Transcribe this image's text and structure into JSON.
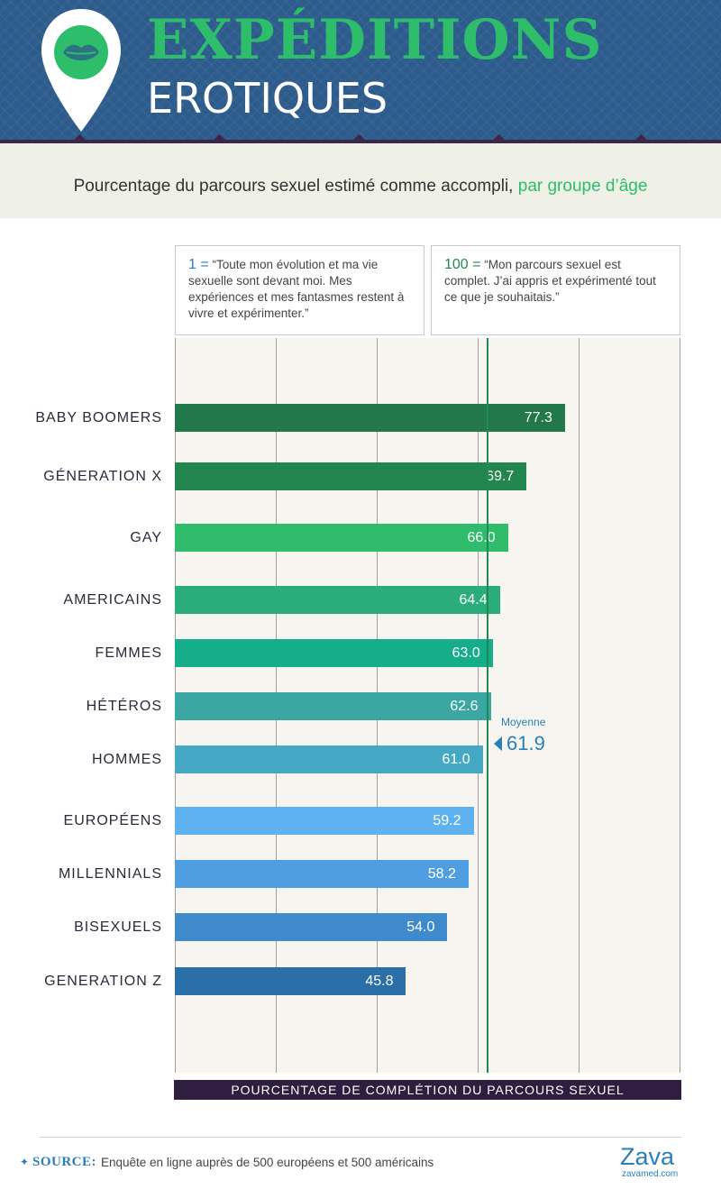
{
  "header": {
    "title_main": "EXPÉDITIONS",
    "title_sub": "EROTIQUES"
  },
  "subtitle": {
    "text": "Pourcentage du parcours sexuel estimé comme accompli, ",
    "accent": "par groupe d’âge"
  },
  "legend": {
    "left_num": "1 =",
    "left_text": "“Toute mon évolution et ma vie sexuelle sont devant moi. Mes expériences et mes fantasmes restent à vivre et expérimenter.”",
    "right_num": "100 =",
    "right_text": "“Mon parcours sexuel est complet. J’ai appris et expérimenté tout ce que je souhaitais.”"
  },
  "average": {
    "label": "Moyenne",
    "value_text": "61.9"
  },
  "footer": {
    "source_label": "SOURCE:",
    "source_text": "Enquête en ligne auprès de 500 européens et 500 américains",
    "logo_word": "Zava",
    "logo_url": "zavamed.com"
  },
  "colors": {
    "header_bg": "#2c5b8c",
    "title_green": "#2ebd6b",
    "avg_line": "#1f8a52",
    "avg_text": "#2a7fb8",
    "axis_band": "#2f1e40"
  },
  "chart_data": {
    "type": "bar",
    "orientation": "horizontal",
    "title": "Pourcentage du parcours sexuel estimé comme accompli, par groupe d’âge",
    "xlabel": "POURCENTAGE DE COMPLÉTION DU PARCOURS SEXUEL",
    "ylabel": "",
    "xlim": [
      0,
      100
    ],
    "grid": true,
    "average": 61.9,
    "categories": [
      "BABY BOOMERS",
      "GÉNERATION X",
      "GAY",
      "AMERICAINS",
      "FEMMES",
      "HÉTÉROS",
      "HOMMES",
      "EUROPÉENS",
      "MILLENNIALS",
      "BISEXUELS",
      "GENERATION Z"
    ],
    "values": [
      77.3,
      69.7,
      66.0,
      64.4,
      63.0,
      62.6,
      61.0,
      59.2,
      58.2,
      54.0,
      45.8
    ],
    "value_labels": [
      "77.3",
      "69.7",
      "66.0",
      "64.4",
      "63.0",
      "62.6",
      "61.0",
      "59.2",
      "58.2",
      "54.0",
      "45.8"
    ],
    "bar_colors": [
      "#22784a",
      "#24864f",
      "#2fbd6c",
      "#2aad7a",
      "#16ad8a",
      "#3ba7a3",
      "#45a9c6",
      "#5fb2f0",
      "#4f9ee2",
      "#3f8acb",
      "#2b6fa8"
    ]
  }
}
